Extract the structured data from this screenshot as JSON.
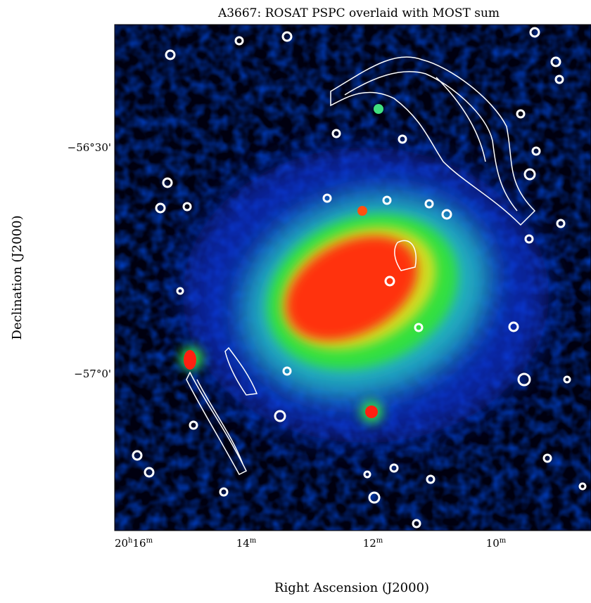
{
  "title": "A3667: ROSAT PSPC overlaid with MOST sum",
  "x_axis_label": "Right Ascension (J2000)",
  "y_axis_label": "Declination (J2000)",
  "x_ticks": [
    [
      "20",
      "h",
      "16",
      "m"
    ],
    [
      "14",
      "m"
    ],
    [
      "12",
      "m"
    ],
    [
      "10",
      "m"
    ]
  ],
  "y_ticks": [
    "−56°30'",
    "−57°0'"
  ]
}
